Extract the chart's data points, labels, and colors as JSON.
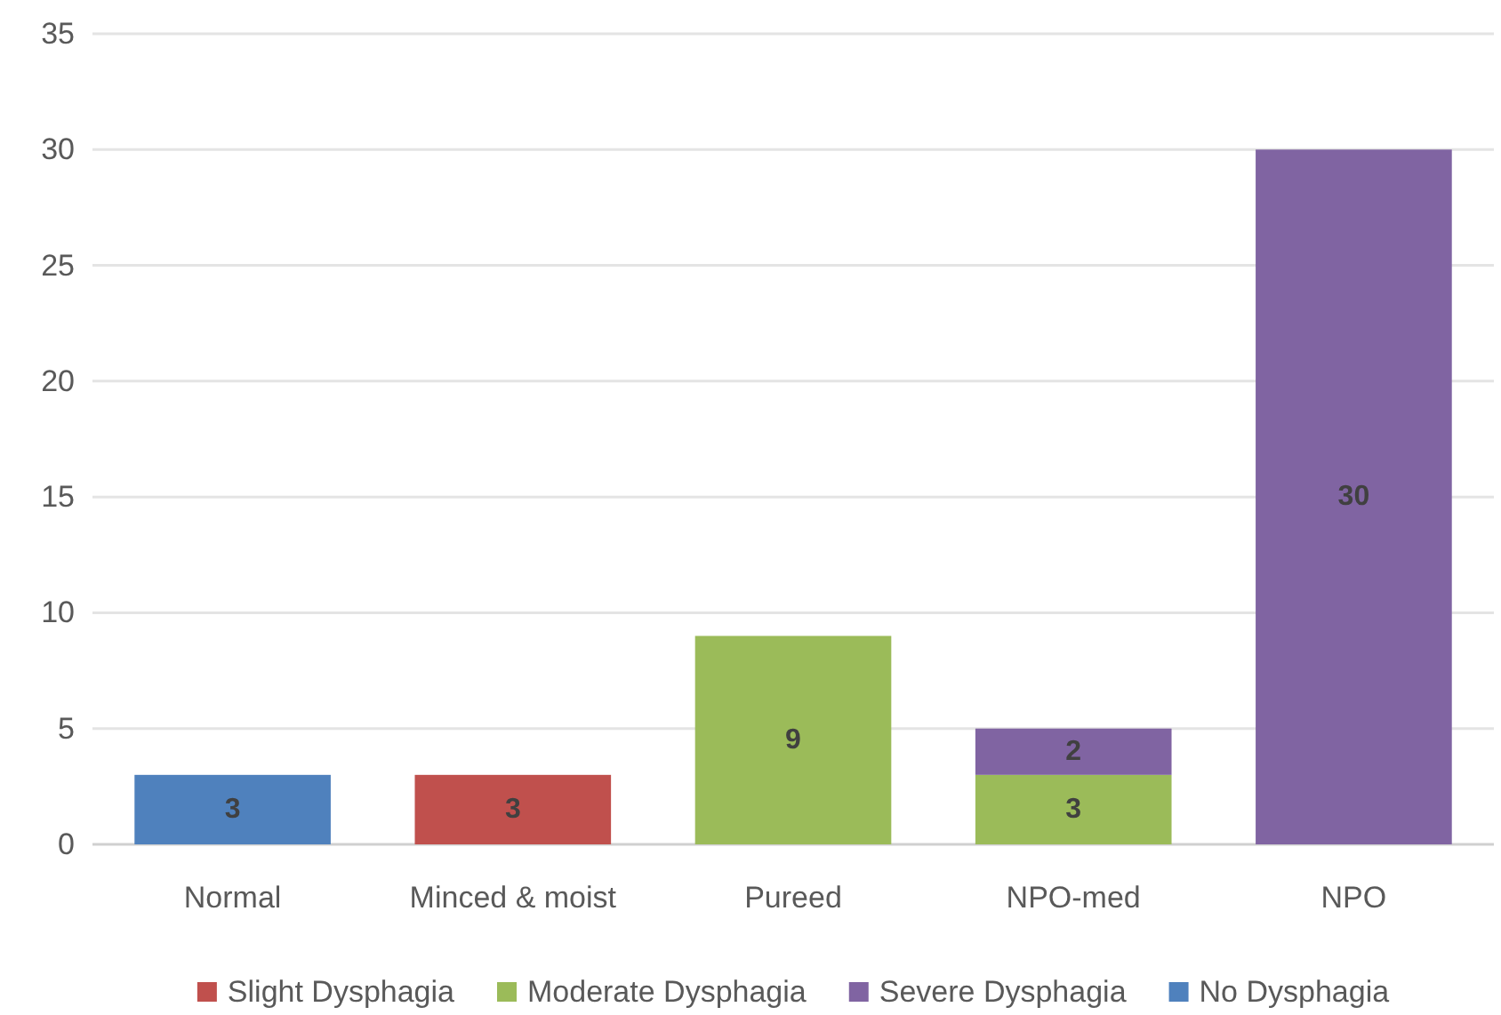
{
  "chart_data": {
    "type": "bar",
    "stacked": true,
    "categories": [
      "Normal",
      "Minced & moist",
      "Pureed",
      "NPO-med",
      "NPO"
    ],
    "series": [
      {
        "name": "Slight Dysphagia",
        "color": "#c0504d",
        "values": [
          null,
          3,
          null,
          null,
          null
        ]
      },
      {
        "name": "Moderate Dysphagia",
        "color": "#9bbb59",
        "values": [
          null,
          null,
          9,
          3,
          null
        ]
      },
      {
        "name": "Severe Dysphagia",
        "color": "#8064a2",
        "values": [
          null,
          null,
          null,
          2,
          30
        ]
      },
      {
        "name": "No Dysphagia",
        "color": "#4f81bd",
        "values": [
          3,
          null,
          null,
          null,
          null
        ]
      }
    ],
    "ylim": [
      0,
      35
    ],
    "yticks": [
      0,
      5,
      10,
      15,
      20,
      25,
      30,
      35
    ],
    "grid": "y",
    "data_labels": true,
    "legend": "bottom"
  }
}
